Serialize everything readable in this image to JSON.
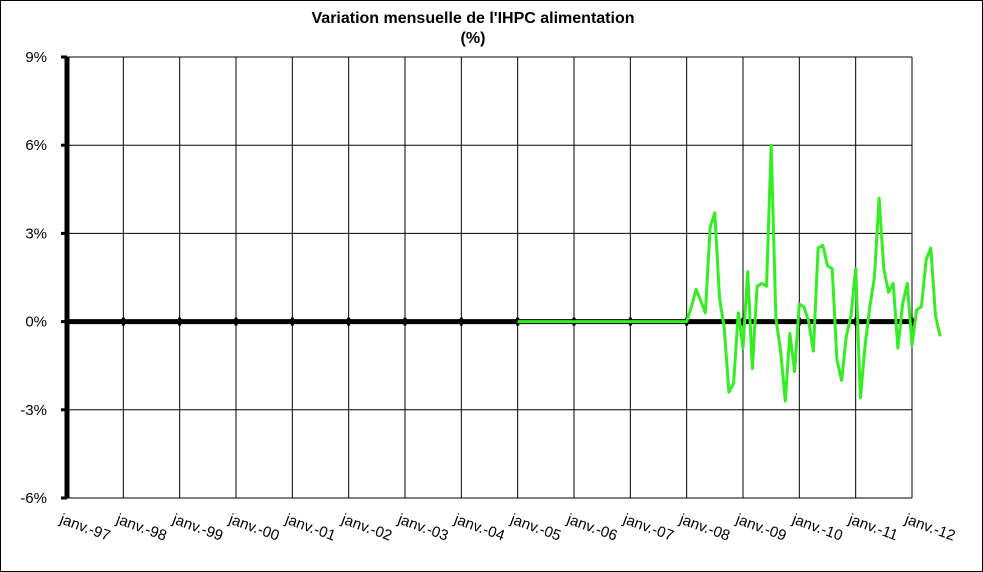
{
  "chart_data": {
    "type": "line",
    "title": "Variation mensuelle de l'IHPC alimentation",
    "subtitle": "(%)",
    "xlabel": "",
    "ylabel": "",
    "ylim": [
      -6,
      9
    ],
    "y_ticks": [
      "9%",
      "6%",
      "3%",
      "0%",
      "-3%",
      "-6%"
    ],
    "x_ticks": [
      "janv.-97",
      "janv.-98",
      "janv.-99",
      "janv.-00",
      "janv.-01",
      "janv.-02",
      "janv.-03",
      "janv.-04",
      "janv.-05",
      "janv.-06",
      "janv.-07",
      "janv.-08",
      "janv.-09",
      "janv.-10",
      "janv.-11",
      "janv.-12"
    ],
    "grid": true,
    "legend": "none",
    "colors": {
      "series": "#33ee22",
      "axis": "#000000",
      "grid": "#000000"
    },
    "series": [
      {
        "x_start": "janv.-05",
        "values": [
          0,
          0,
          0,
          0,
          0,
          0,
          0,
          0,
          0,
          0,
          0,
          0,
          0,
          0,
          0,
          0,
          0,
          0,
          0,
          0,
          0,
          0,
          0,
          0,
          0,
          0,
          0,
          0,
          0,
          0,
          0,
          0,
          0,
          0,
          0,
          0,
          0,
          0.5,
          1.1,
          0.7,
          0.3,
          3.2,
          3.7,
          0.8,
          -0.2,
          -2.4,
          -2.1,
          0.3,
          -0.9,
          1.7,
          -1.6,
          1.2,
          1.3,
          1.2,
          6.0,
          0.1,
          -1.0,
          -2.7,
          -0.4,
          -1.7,
          0.6,
          0.5,
          0.0,
          -1.0,
          2.5,
          2.6,
          1.9,
          1.8,
          -1.3,
          -2.0,
          -0.5,
          0.2,
          1.8,
          -2.6,
          -0.8,
          0.5,
          1.5,
          4.2,
          1.8,
          1.0,
          1.3,
          -0.9,
          0.6,
          1.3,
          -0.8,
          0.4,
          0.5,
          2.1,
          2.5,
          0.2,
          -0.5
        ]
      }
    ]
  }
}
